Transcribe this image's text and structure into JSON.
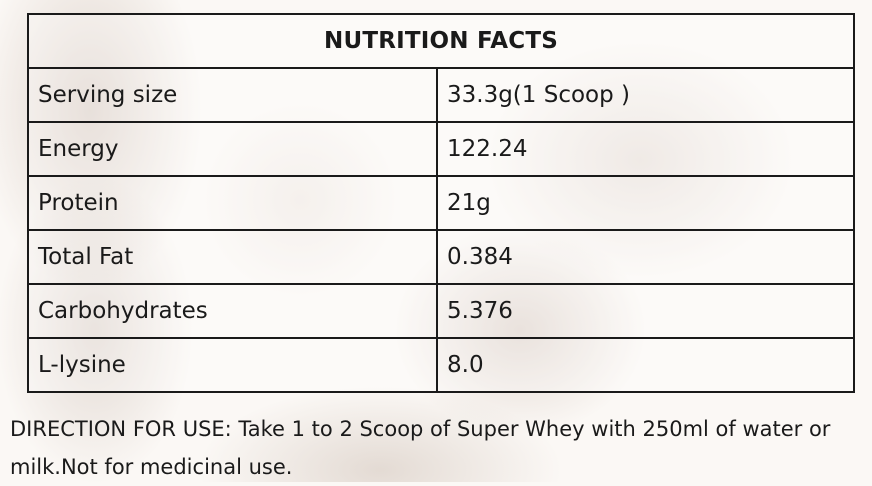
{
  "nutrition": {
    "title": "NUTRITION FACTS",
    "rows": [
      {
        "label": "Serving size",
        "value": "33.3g(1 Scoop )"
      },
      {
        "label": "Energy",
        "value": "122.24"
      },
      {
        "label": "Protein",
        "value": "21g"
      },
      {
        "label": "Total Fat",
        "value": "0.384"
      },
      {
        "label": "Carbohydrates",
        "value": "5.376"
      },
      {
        "label": "L-lysine",
        "value": "8.0"
      }
    ]
  },
  "directions": {
    "text": "DIRECTION FOR USE: Take 1 to 2 Scoop of Super Whey with 250ml of water or milk.Not for medicinal use."
  }
}
